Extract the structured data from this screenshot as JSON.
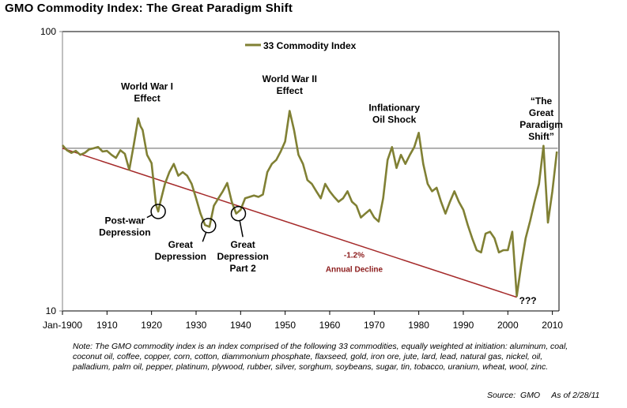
{
  "title": "GMO Commodity Index:  The Great Paradigm Shift",
  "note": "Note: The GMO commodity index is an index comprised of the following 33 commodities, equally weighted at initiation:  aluminum, coal, coconut oil, coffee, copper, corn, cotton, diammonium phosphate, flaxseed, gold, iron ore, jute, lard, lead, natural gas, nickel, oil, palladium, palm oil, pepper, platinum, plywood, rubber, silver, sorghum, soybeans, sugar, tin, tobacco, uranium, wheat, wool, zinc.",
  "source": "Source:  GMO     As of 2/28/11",
  "colors": {
    "series": "#808034",
    "trend": "#a52a2a",
    "reference": "#808080",
    "decline_text": "#8b1a1a"
  },
  "chart_data": {
    "type": "line",
    "title": "GMO Commodity Index:  The Great Paradigm Shift",
    "xlabel": "",
    "ylabel": "",
    "y_scale": "log",
    "ylim": [
      10,
      100
    ],
    "xlim": [
      1900,
      2011.2
    ],
    "y_ticks": [
      {
        "value": 100,
        "label": "100"
      },
      {
        "value": 10,
        "label": "10"
      }
    ],
    "x_ticks": [
      {
        "value": 1900,
        "label": "Jan-1900"
      },
      {
        "value": 1910,
        "label": "1910"
      },
      {
        "value": 1920,
        "label": "1920"
      },
      {
        "value": 1930,
        "label": "1930"
      },
      {
        "value": 1940,
        "label": "1940"
      },
      {
        "value": 1950,
        "label": "1950"
      },
      {
        "value": 1960,
        "label": "1960"
      },
      {
        "value": 1970,
        "label": "1970"
      },
      {
        "value": 1980,
        "label": "1980"
      },
      {
        "value": 1990,
        "label": "1990"
      },
      {
        "value": 2000,
        "label": "2000"
      },
      {
        "value": 2010,
        "label": "2010"
      }
    ],
    "grid": false,
    "legend": {
      "position": "top-center",
      "entries": [
        "33 Commodity Index"
      ]
    },
    "series": [
      {
        "name": "33 Commodity Index",
        "x": [
          1900,
          1901,
          1902,
          1903,
          1904,
          1905,
          1906,
          1907,
          1908,
          1909,
          1910,
          1911,
          1912,
          1913,
          1914,
          1915,
          1916,
          1917,
          1917.5,
          1918,
          1919,
          1920,
          1921,
          1921.5,
          1922,
          1923,
          1924,
          1925,
          1926,
          1927,
          1928,
          1929,
          1930,
          1931,
          1932,
          1933,
          1934,
          1935,
          1936,
          1937,
          1938,
          1939,
          1940,
          1941,
          1942,
          1943,
          1944,
          1945,
          1946,
          1947,
          1948,
          1949,
          1950,
          1951,
          1952,
          1953,
          1954,
          1955,
          1956,
          1957,
          1958,
          1959,
          1960,
          1961,
          1962,
          1963,
          1964,
          1965,
          1966,
          1967,
          1968,
          1969,
          1970,
          1971,
          1972,
          1973,
          1974,
          1975,
          1976,
          1977,
          1978,
          1979,
          1980,
          1981,
          1982,
          1983,
          1984,
          1985,
          1986,
          1987,
          1988,
          1989,
          1990,
          1991,
          1992,
          1993,
          1994,
          1995,
          1996,
          1997,
          1998,
          1999,
          2000,
          2001,
          2002,
          2003,
          2004,
          2005,
          2006,
          2007,
          2008,
          2009,
          2010,
          2011
        ],
        "values": [
          39.2,
          37.6,
          36.8,
          37.4,
          36.2,
          36.8,
          37.9,
          38.2,
          38.6,
          37.2,
          37.4,
          36.2,
          35.3,
          37.6,
          36.5,
          32.0,
          39.2,
          48.9,
          45.9,
          44.4,
          36.2,
          33.8,
          24.0,
          22.7,
          24.6,
          28.5,
          31.4,
          33.6,
          30.5,
          31.4,
          30.5,
          28.5,
          25.3,
          22.3,
          20.3,
          20.0,
          23.8,
          25.3,
          26.8,
          28.7,
          24.6,
          22.3,
          23.0,
          25.3,
          25.6,
          25.9,
          25.6,
          26.1,
          31.4,
          33.6,
          34.7,
          37.2,
          40.4,
          52.0,
          44.4,
          36.2,
          33.6,
          29.4,
          28.5,
          26.8,
          25.3,
          28.5,
          26.8,
          25.6,
          24.6,
          25.3,
          26.8,
          24.6,
          23.8,
          21.6,
          22.3,
          23.0,
          21.6,
          20.9,
          25.3,
          34.7,
          38.6,
          32.5,
          36.2,
          33.6,
          36.2,
          38.6,
          43.4,
          33.6,
          28.5,
          26.8,
          27.6,
          24.6,
          22.3,
          24.6,
          26.8,
          24.6,
          23.0,
          20.3,
          18.2,
          16.5,
          16.2,
          18.9,
          19.2,
          18.2,
          16.2,
          16.5,
          16.5,
          19.2,
          11.3,
          14.6,
          18.2,
          21.0,
          24.6,
          28.5,
          39.0,
          20.7,
          26.8,
          37.2
        ]
      },
      {
        "name": "Trend (-1.2% annual decline)",
        "x": [
          1900,
          2002
        ],
        "values": [
          38.2,
          11.2
        ]
      },
      {
        "name": "Reference level",
        "x": [
          1900,
          2011.2
        ],
        "values": [
          38.2,
          38.2
        ]
      }
    ],
    "annotations": [
      {
        "text": [
          "World War I",
          "Effect"
        ],
        "x": 1919,
        "y": 62
      },
      {
        "text": [
          "World War II",
          "Effect"
        ],
        "x": 1951,
        "y": 66
      },
      {
        "text": [
          "Inflationary",
          "Oil Shock"
        ],
        "x": 1974.5,
        "y": 52
      },
      {
        "text": [
          "“The",
          "Great",
          "Paradigm",
          "Shift”"
        ],
        "x": 2007.5,
        "y": 55
      },
      {
        "text": [
          "Post-war",
          "Depression"
        ],
        "x": 1914,
        "y": 20.5,
        "circle_at": [
          1921.5,
          22.7
        ]
      },
      {
        "text": [
          "Great",
          "Depression"
        ],
        "x": 1926.5,
        "y": 16.8,
        "circle_at": [
          1932.8,
          20.2
        ]
      },
      {
        "text": [
          "Great",
          "Depression",
          "Part 2"
        ],
        "x": 1940.5,
        "y": 16.8,
        "circle_at": [
          1939.5,
          22.3
        ]
      },
      {
        "text": [
          "-1.2%",
          "Annual Decline"
        ],
        "x": 1965.5,
        "y": 15.5,
        "style": "decline"
      },
      {
        "text": [
          "???"
        ],
        "x": 2004.5,
        "y": 10.6
      }
    ]
  }
}
